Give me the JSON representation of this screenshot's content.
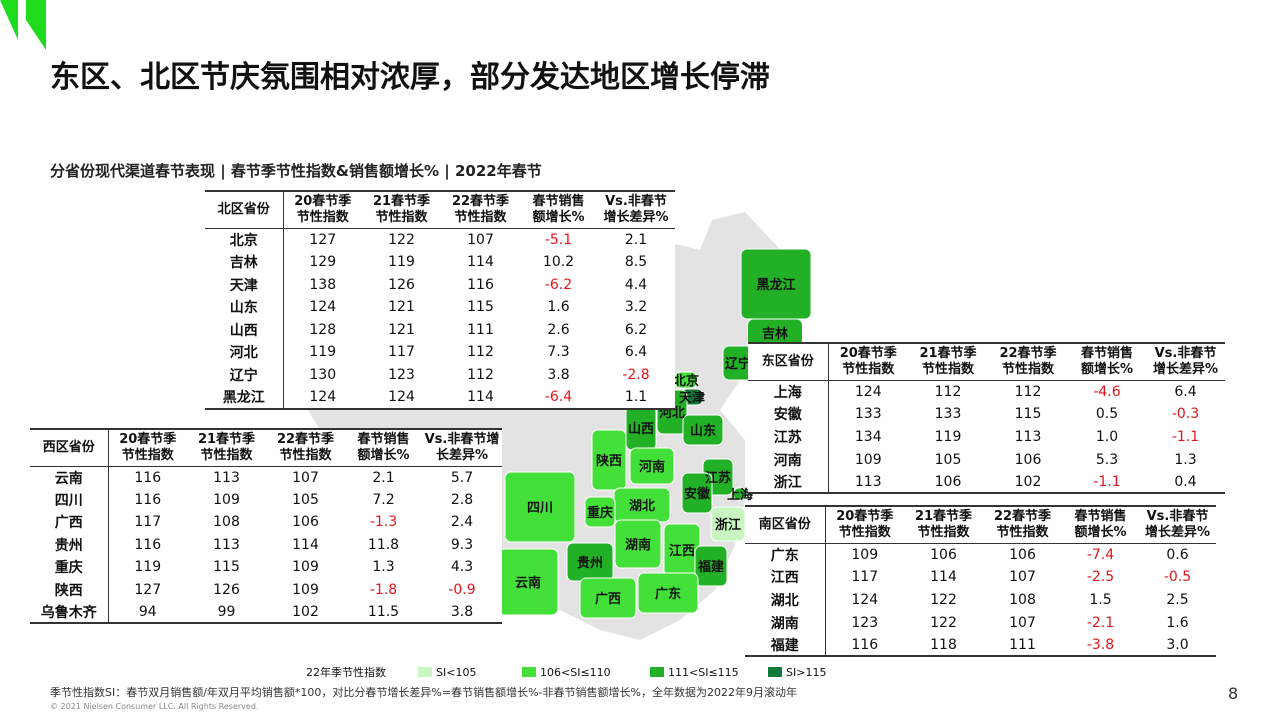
{
  "header": {
    "title": "东区、北区节庆氛围相对浓厚，部分发达地区增长停滞",
    "subtitle": "分省份现代渠道春节表现 | 春节季节性指数&销售额增长% | 2022年春节"
  },
  "tables": {
    "north": {
      "header": [
        [
          "北区省份"
        ],
        [
          "20春节季",
          "节性指数"
        ],
        [
          "21春节季",
          "节性指数"
        ],
        [
          "22春节季",
          "节性指数"
        ],
        [
          "春节销售",
          "额增长%"
        ],
        [
          "Vs.非春节",
          "增长差异%"
        ]
      ],
      "rows": [
        [
          "北京",
          "127",
          "122",
          "107",
          "-5.1",
          "2.1"
        ],
        [
          "吉林",
          "129",
          "119",
          "114",
          "10.2",
          "8.5"
        ],
        [
          "天津",
          "138",
          "126",
          "116",
          "-6.2",
          "4.4"
        ],
        [
          "山东",
          "124",
          "121",
          "115",
          "1.6",
          "3.2"
        ],
        [
          "山西",
          "128",
          "121",
          "111",
          "2.6",
          "6.2"
        ],
        [
          "河北",
          "119",
          "117",
          "112",
          "7.3",
          "6.4"
        ],
        [
          "辽宁",
          "130",
          "123",
          "112",
          "3.8",
          "-2.8"
        ],
        [
          "黑龙江",
          "124",
          "124",
          "114",
          "-6.4",
          "1.1"
        ]
      ]
    },
    "west": {
      "header": [
        [
          "西区省份"
        ],
        [
          "20春节季",
          "节性指数"
        ],
        [
          "21春节季",
          "节性指数"
        ],
        [
          "22春节季",
          "节性指数"
        ],
        [
          "春节销售",
          "额增长%"
        ],
        [
          "Vs.非春节增",
          "长差异%"
        ]
      ],
      "rows": [
        [
          "云南",
          "116",
          "113",
          "107",
          "2.1",
          "5.7"
        ],
        [
          "四川",
          "116",
          "109",
          "105",
          "7.2",
          "2.8"
        ],
        [
          "广西",
          "117",
          "108",
          "106",
          "-1.3",
          "2.4"
        ],
        [
          "贵州",
          "116",
          "113",
          "114",
          "11.8",
          "9.3"
        ],
        [
          "重庆",
          "119",
          "115",
          "109",
          "1.3",
          "4.3"
        ],
        [
          "陕西",
          "127",
          "126",
          "109",
          "-1.8",
          "-0.9"
        ],
        [
          "乌鲁木齐",
          "94",
          "99",
          "102",
          "11.5",
          "3.8"
        ]
      ]
    },
    "east": {
      "header": [
        [
          "东区省份"
        ],
        [
          "20春节季",
          "节性指数"
        ],
        [
          "21春节季",
          "节性指数"
        ],
        [
          "22春节季",
          "节性指数"
        ],
        [
          "春节销售",
          "额增长%"
        ],
        [
          "Vs.非春节",
          "增长差异%"
        ]
      ],
      "rows": [
        [
          "上海",
          "124",
          "112",
          "112",
          "-4.6",
          "6.4"
        ],
        [
          "安徽",
          "133",
          "133",
          "115",
          "0.5",
          "-0.3"
        ],
        [
          "江苏",
          "134",
          "119",
          "113",
          "1.0",
          "-1.1"
        ],
        [
          "河南",
          "109",
          "105",
          "106",
          "5.3",
          "1.3"
        ],
        [
          "浙江",
          "113",
          "106",
          "102",
          "-1.1",
          "0.4"
        ]
      ]
    },
    "south": {
      "header": [
        [
          "南区省份"
        ],
        [
          "20春节季",
          "节性指数"
        ],
        [
          "21春节季",
          "节性指数"
        ],
        [
          "22春节季",
          "节性指数"
        ],
        [
          "春节销售",
          "额增长%"
        ],
        [
          "Vs.非春节",
          "增长差异%"
        ]
      ],
      "rows": [
        [
          "广东",
          "109",
          "106",
          "106",
          "-7.4",
          "0.6"
        ],
        [
          "江西",
          "117",
          "114",
          "107",
          "-2.5",
          "-0.5"
        ],
        [
          "湖北",
          "124",
          "122",
          "108",
          "1.5",
          "2.5"
        ],
        [
          "湖南",
          "123",
          "122",
          "107",
          "-2.1",
          "1.6"
        ],
        [
          "福建",
          "116",
          "118",
          "111",
          "-3.8",
          "3.0"
        ]
      ]
    }
  },
  "map": {
    "provinces": [
      {
        "name": "黑龙江",
        "color": "#22b026"
      },
      {
        "name": "吉林",
        "color": "#22b026"
      },
      {
        "name": "辽宁",
        "color": "#22b026"
      },
      {
        "name": "北京",
        "color": "#44e03a"
      },
      {
        "name": "天津",
        "color": "#0f7a3a"
      },
      {
        "name": "河北",
        "color": "#22b026"
      },
      {
        "name": "山西",
        "color": "#22b026"
      },
      {
        "name": "山东",
        "color": "#22b026"
      },
      {
        "name": "陕西",
        "color": "#44e03a"
      },
      {
        "name": "河南",
        "color": "#44e03a"
      },
      {
        "name": "江苏",
        "color": "#22b026"
      },
      {
        "name": "安徽",
        "color": "#22b026"
      },
      {
        "name": "上海",
        "color": "#22b026"
      },
      {
        "name": "四川",
        "color": "#44e03a"
      },
      {
        "name": "湖北",
        "color": "#44e03a"
      },
      {
        "name": "重庆",
        "color": "#44e03a"
      },
      {
        "name": "浙江",
        "color": "#c8f5c0"
      },
      {
        "name": "湖南",
        "color": "#44e03a"
      },
      {
        "name": "江西",
        "color": "#44e03a"
      },
      {
        "name": "贵州",
        "color": "#22b026"
      },
      {
        "name": "福建",
        "color": "#22b026"
      },
      {
        "name": "云南",
        "color": "#44e03a"
      },
      {
        "name": "广西",
        "color": "#44e03a"
      },
      {
        "name": "广东",
        "color": "#44e03a"
      }
    ],
    "legend": {
      "title": "22年季节性指数",
      "items": [
        {
          "label": "SI<105",
          "color": "#c8f5c0"
        },
        {
          "label": "106<SI≤110",
          "color": "#44e03a"
        },
        {
          "label": "111<SI≤115",
          "color": "#22b026"
        },
        {
          "label": "SI>115",
          "color": "#0f7a3a"
        }
      ]
    }
  },
  "footer": {
    "note": "季节性指数SI：春节双月销售额/年双月平均销售额*100，对比分春节增长差异%=春节销售额增长%-非春节销售额增长%，全年数据为2022年9月滚动年",
    "copyright": "© 2021 Nielsen Consumer LLC. All Rights Reserved.",
    "page": "8"
  }
}
